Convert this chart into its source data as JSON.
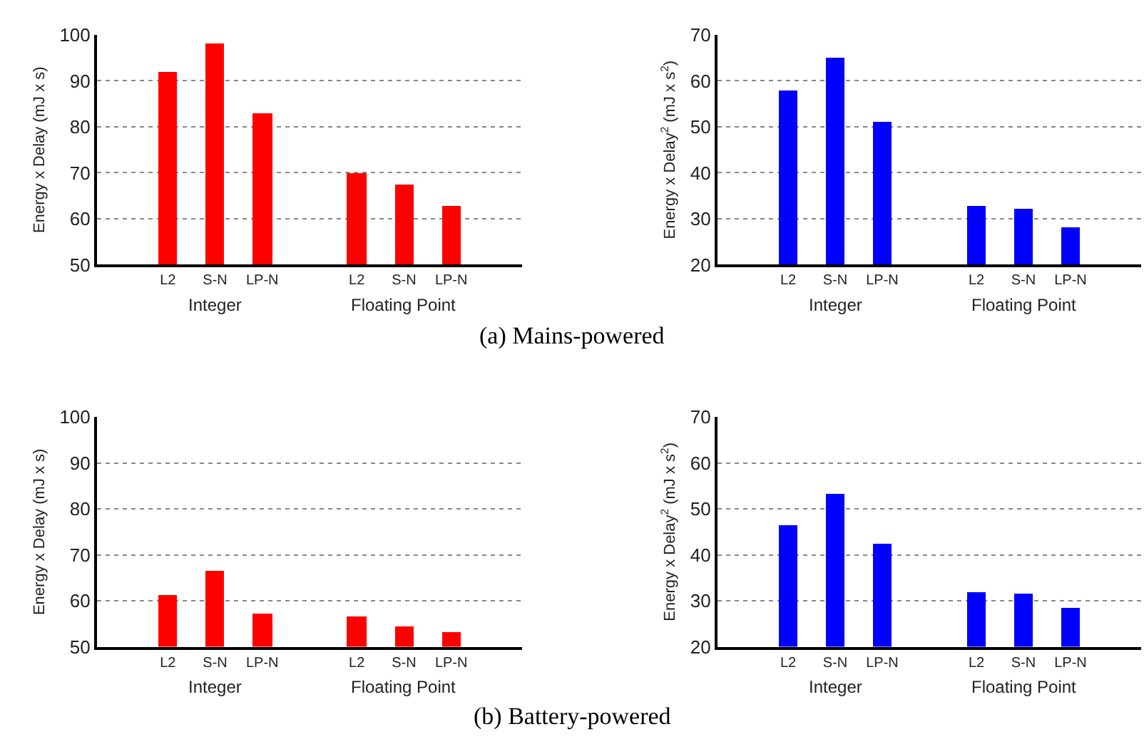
{
  "chart_data": [
    {
      "type": "bar",
      "categories": [
        null,
        "L2",
        "S-N",
        "LP-N",
        null,
        "L2",
        "S-N",
        "LP-N",
        null
      ],
      "values": [
        null,
        92,
        98,
        83,
        null,
        69.8,
        67.3,
        62.8,
        null
      ],
      "color": "#ff0000",
      "ylabel": "Energy x Delay (mJ x s)",
      "ylim": [
        50,
        100
      ],
      "yticks": [
        50,
        60,
        70,
        80,
        90,
        100
      ],
      "grid": "y",
      "annotations": [
        "Integer",
        "Floating Point",
        "(a) Mains-powered"
      ]
    },
    {
      "type": "bar",
      "categories": [
        null,
        "L2",
        "S-N",
        "LP-N",
        null,
        "L2",
        "S-N",
        "LP-N",
        null
      ],
      "values": [
        null,
        58,
        65,
        51.2,
        null,
        32.8,
        32.2,
        28,
        null
      ],
      "color": "#0000ff",
      "ylabel": "Energy x Delay$^{2}$ (mJ x s$^{2}$)",
      "ylim": [
        20,
        70
      ],
      "yticks": [
        20,
        30,
        40,
        50,
        60,
        70
      ],
      "grid": "y",
      "annotations": [
        "Integer",
        "Floating Point"
      ]
    },
    {
      "type": "bar",
      "categories": [
        null,
        "L2",
        "S-N",
        "LP-N",
        null,
        "L2",
        "S-N",
        "LP-N",
        null
      ],
      "values": [
        null,
        61.3,
        66.5,
        57.2,
        null,
        56.6,
        54.5,
        53.3,
        null
      ],
      "color": "#ff0000",
      "ylabel": "Energy x Delay (mJ x s)",
      "ylim": [
        50,
        100
      ],
      "yticks": [
        50,
        60,
        70,
        80,
        90,
        100
      ],
      "grid": "y",
      "annotations": [
        "Integer",
        "Floating Point",
        "(b) Battery-powered"
      ]
    },
    {
      "type": "bar",
      "categories": [
        null,
        "L2",
        "S-N",
        "LP-N",
        null,
        "L2",
        "S-N",
        "LP-N",
        null
      ],
      "values": [
        null,
        46.5,
        53.2,
        42.3,
        null,
        32,
        31.4,
        28.4,
        null
      ],
      "color": "#0000ff",
      "ylabel": "Energy x Delay$^{2}$ (mJ x s$^{2}$)",
      "ylim": [
        20,
        70
      ],
      "yticks": [
        20,
        30,
        40,
        50,
        60,
        70
      ],
      "grid": "y",
      "annotations": [
        "Integer",
        "Floating Point"
      ]
    }
  ]
}
